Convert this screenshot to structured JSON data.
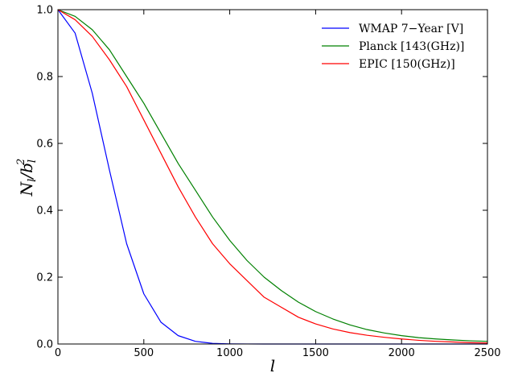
{
  "chart_data": {
    "type": "line",
    "title": "",
    "xlabel": "l",
    "ylabel_main": "N",
    "ylabel_sub": "l",
    "ylabel_mid": "/b",
    "ylabel_sub2": "l",
    "ylabel_sup2": "2",
    "xlim": [
      0,
      2500
    ],
    "ylim": [
      0.0,
      1.0
    ],
    "x_ticks": [
      0,
      500,
      1000,
      1500,
      2000,
      2500
    ],
    "x_tick_labels": [
      "0",
      "500",
      "1000",
      "1500",
      "2000",
      "2500"
    ],
    "y_ticks": [
      0.0,
      0.2,
      0.4,
      0.6,
      0.8,
      1.0
    ],
    "y_tick_labels": [
      "0.0",
      "0.2",
      "0.4",
      "0.6",
      "0.8",
      "1.0"
    ],
    "grid": false,
    "legend_position": "top-right",
    "x": [
      0,
      100,
      200,
      300,
      400,
      500,
      600,
      700,
      800,
      900,
      1000,
      1100,
      1200,
      1300,
      1400,
      1500,
      1600,
      1700,
      1800,
      1900,
      2000,
      2100,
      2200,
      2300,
      2400,
      2500
    ],
    "series": [
      {
        "name": "WMAP 7−Year [V]",
        "color": "#0000ff",
        "values": [
          1.0,
          0.93,
          0.75,
          0.52,
          0.3,
          0.15,
          0.065,
          0.025,
          0.008,
          0.002,
          0.0005,
          0.0001,
          0.0,
          0.0,
          0.0,
          0.0,
          0.0,
          0.0,
          0.0,
          0.0,
          0.0,
          0.0,
          0.0,
          0.0,
          0.0,
          0.0
        ]
      },
      {
        "name": "Planck [143(GHz)]",
        "color": "#008000",
        "values": [
          1.0,
          0.98,
          0.94,
          0.88,
          0.8,
          0.72,
          0.63,
          0.54,
          0.46,
          0.38,
          0.31,
          0.25,
          0.2,
          0.16,
          0.125,
          0.097,
          0.075,
          0.057,
          0.043,
          0.033,
          0.025,
          0.019,
          0.015,
          0.012,
          0.0095,
          0.008
        ]
      },
      {
        "name": "EPIC [150(GHz)]",
        "color": "#ff0000",
        "values": [
          1.0,
          0.97,
          0.92,
          0.85,
          0.77,
          0.67,
          0.57,
          0.47,
          0.38,
          0.3,
          0.24,
          0.19,
          0.14,
          0.11,
          0.08,
          0.06,
          0.045,
          0.034,
          0.026,
          0.02,
          0.015,
          0.011,
          0.008,
          0.006,
          0.004,
          0.003
        ]
      }
    ]
  }
}
